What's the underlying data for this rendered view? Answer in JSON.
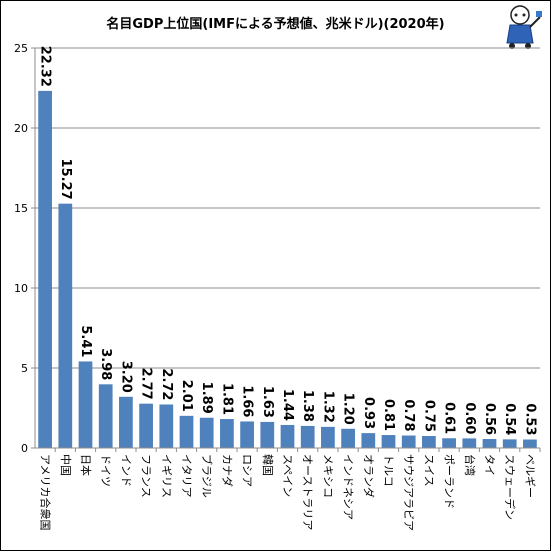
{
  "chart_data": {
    "type": "bar",
    "title": "名目GDP上位国(IMFによる予想値、兆米ドル)(2020年)",
    "categories": [
      "アメリカ合衆国",
      "中国",
      "日本",
      "ドイツ",
      "インド",
      "フランス",
      "イギリス",
      "イタリア",
      "ブラジル",
      "カナダ",
      "ロシア",
      "韓国",
      "スペイン",
      "オーストラリア",
      "メキシコ",
      "インドネシア",
      "オランダ",
      "トルコ",
      "サウジアラビア",
      "スイス",
      "ポーランド",
      "台湾",
      "タイ",
      "スウェーデン",
      "ベルギー"
    ],
    "values": [
      22.32,
      15.27,
      5.41,
      3.98,
      3.2,
      2.77,
      2.72,
      2.01,
      1.89,
      1.81,
      1.66,
      1.63,
      1.44,
      1.38,
      1.32,
      1.2,
      0.93,
      0.81,
      0.78,
      0.75,
      0.61,
      0.6,
      0.56,
      0.54,
      0.53
    ],
    "value_labels": [
      "22.32",
      "15.27",
      "5.41",
      "3.98",
      "3.20",
      "2.77",
      "2.72",
      "2.01",
      "1.89",
      "1.81",
      "1.66",
      "1.63",
      "1.44",
      "1.38",
      "1.32",
      "1.20",
      "0.93",
      "0.81",
      "0.78",
      "0.75",
      "0.61",
      "0.60",
      "0.56",
      "0.54",
      "0.53"
    ],
    "yticks": [
      "0",
      "5",
      "10",
      "15",
      "20",
      "25"
    ],
    "ylim": [
      0,
      25
    ],
    "grid": true,
    "bar_color": "#4f81bd"
  }
}
